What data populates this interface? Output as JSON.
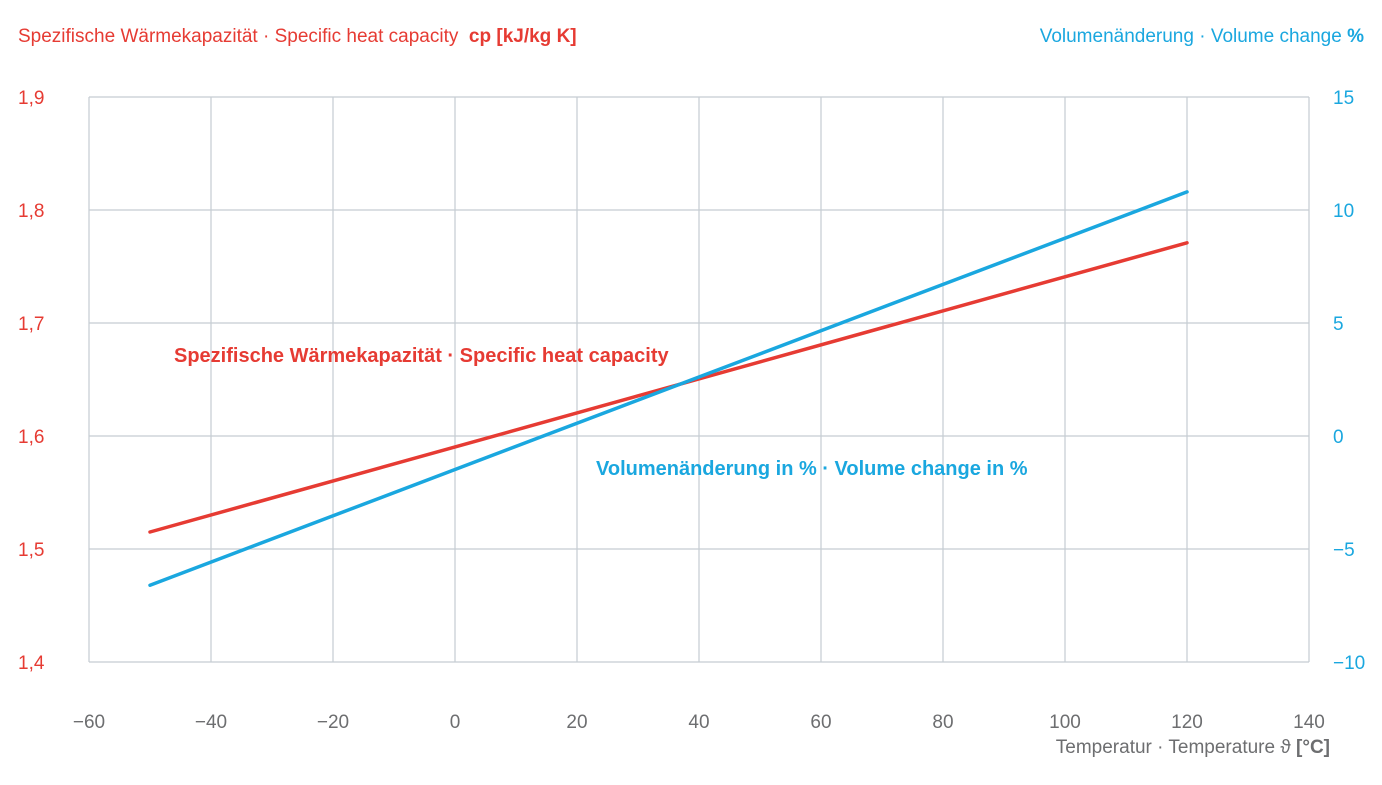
{
  "colors": {
    "heat_capacity": "#e63b33",
    "volume_change": "#1aa7df",
    "grid": "#c5ccd2",
    "x_axis_text": "#6d6e70"
  },
  "chart_data": {
    "type": "line",
    "title": "",
    "grid": true,
    "x_axis": {
      "label": "Temperatur · Temperature ϑ",
      "unit": "[°C]",
      "range": [
        -60,
        140
      ],
      "ticks": [
        -60,
        -40,
        -20,
        0,
        20,
        40,
        60,
        80,
        100,
        120,
        140
      ],
      "tick_labels": [
        "−60",
        "−40",
        "−20",
        "0",
        "20",
        "40",
        "60",
        "80",
        "100",
        "120",
        "140"
      ]
    },
    "y_axis_left": {
      "label": "Spezifische Wärmekapazität · Specific heat capacity",
      "unit": "cp [kJ/kg K]",
      "range": [
        1.4,
        1.9
      ],
      "ticks": [
        1.4,
        1.5,
        1.6,
        1.7,
        1.8,
        1.9
      ],
      "tick_labels": [
        "1,4",
        "1,5",
        "1,6",
        "1,7",
        "1,8",
        "1,9"
      ]
    },
    "y_axis_right": {
      "label": "Volumenänderung · Volume change",
      "unit": "%",
      "range": [
        -10,
        15
      ],
      "ticks": [
        -10,
        -5,
        0,
        5,
        10,
        15
      ],
      "tick_labels": [
        "−10",
        "−5",
        "0",
        "5",
        "10",
        "15"
      ]
    },
    "series": [
      {
        "name": "Spezifische Wärmekapazität · Specific heat capacity",
        "axis": "left",
        "x": [
          -50,
          120
        ],
        "y": [
          1.515,
          1.771
        ]
      },
      {
        "name": "Volumenänderung in % · Volume change in %",
        "axis": "right",
        "x": [
          -50,
          120
        ],
        "y": [
          -6.6,
          10.8
        ]
      }
    ]
  }
}
